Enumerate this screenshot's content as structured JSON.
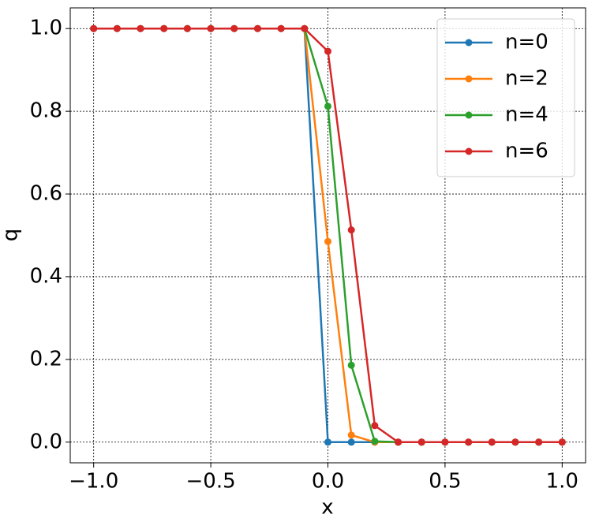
{
  "chart_data": {
    "type": "line",
    "x_label": "x",
    "y_label": "q",
    "x": [
      -1.0,
      -0.9,
      -0.8,
      -0.7,
      -0.6,
      -0.5,
      -0.4,
      -0.3,
      -0.2,
      -0.1,
      0.0,
      0.1,
      0.2,
      0.3,
      0.4,
      0.5,
      0.6,
      0.7,
      0.8,
      0.9,
      1.0
    ],
    "series": [
      {
        "name": "n=0",
        "color": "#1f77b4",
        "values": [
          1,
          1,
          1,
          1,
          1,
          1,
          1,
          1,
          1,
          1,
          0,
          0,
          0,
          0,
          0,
          0,
          0,
          0,
          0,
          0,
          0
        ]
      },
      {
        "name": "n=2",
        "color": "#ff7f0e",
        "values": [
          1,
          1,
          1,
          1,
          1,
          1,
          1,
          1,
          1,
          1,
          0.485,
          0.017,
          0,
          0,
          0,
          0,
          0,
          0,
          0,
          0,
          0
        ]
      },
      {
        "name": "n=4",
        "color": "#2ca02c",
        "values": [
          1,
          1,
          1,
          1,
          1,
          1,
          1,
          1,
          1,
          1,
          0.812,
          0.186,
          0.002,
          0,
          0,
          0,
          0,
          0,
          0,
          0,
          0
        ]
      },
      {
        "name": "n=6",
        "color": "#d62728",
        "values": [
          1,
          1,
          1,
          1,
          1,
          1,
          1,
          1,
          1,
          1,
          0.945,
          0.513,
          0.04,
          0,
          0,
          0,
          0,
          0,
          0,
          0,
          0
        ]
      }
    ],
    "xlim": [
      -1.1,
      1.1
    ],
    "ylim": [
      -0.05,
      1.05
    ],
    "xticks": [
      {
        "value": -1.0,
        "label": "−1.0"
      },
      {
        "value": -0.5,
        "label": "−0.5"
      },
      {
        "value": 0.0,
        "label": "0.0"
      },
      {
        "value": 0.5,
        "label": "0.5"
      },
      {
        "value": 1.0,
        "label": "1.0"
      }
    ],
    "yticks": [
      {
        "value": 0.0,
        "label": "0.0"
      },
      {
        "value": 0.2,
        "label": "0.2"
      },
      {
        "value": 0.4,
        "label": "0.4"
      },
      {
        "value": 0.6,
        "label": "0.6"
      },
      {
        "value": 0.8,
        "label": "0.8"
      },
      {
        "value": 1.0,
        "label": "1.0"
      }
    ],
    "grid": true,
    "legend": "upper right"
  }
}
